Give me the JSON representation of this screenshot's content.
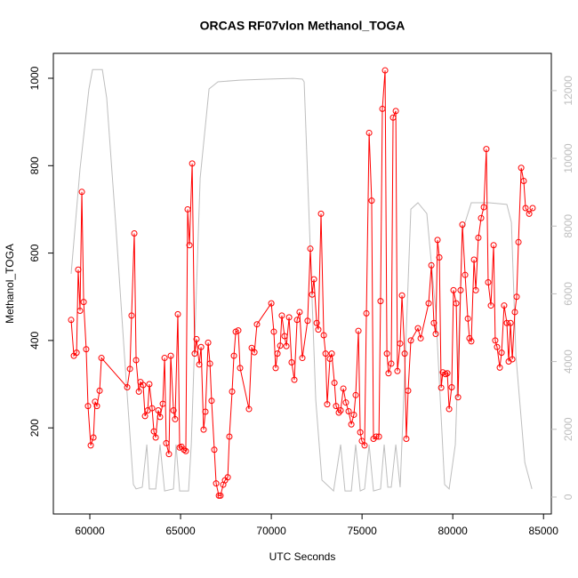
{
  "chart_data": {
    "type": "line",
    "title": "ORCAS RF07vlon Methanol_TOGA",
    "xlabel": "UTC Seconds",
    "ylabel": "Methanol_TOGA",
    "xlim": [
      57990,
      85430
    ],
    "xticks": [
      60000,
      65000,
      70000,
      75000,
      80000,
      85000
    ],
    "ylim": [
      3,
      1057
    ],
    "yticks": [
      200,
      400,
      600,
      800,
      1000
    ],
    "y2lim": [
      -500,
      13100
    ],
    "y2ticks": [
      0,
      2000,
      4000,
      6000,
      8000,
      10000,
      12000
    ],
    "series": [
      {
        "color": "#bebebe",
        "axis": "y2",
        "x": [
          58970,
          59460,
          59950,
          60150,
          60690,
          60930,
          61420,
          61910,
          62400,
          62550,
          62890,
          63140,
          63280,
          63630,
          63870,
          64120,
          64610,
          64750,
          64950,
          65440,
          65590,
          66080,
          66570,
          67060,
          68280,
          69750,
          71220,
          71710,
          71810,
          72450,
          72790,
          73430,
          73820,
          74060,
          74410,
          74650,
          74900,
          75140,
          75390,
          75630,
          76020,
          76220,
          76420,
          76610,
          76860,
          77100,
          77350,
          77690,
          78080,
          78570,
          79060,
          79550,
          79800,
          80140,
          80530,
          81020,
          82000,
          82980,
          83230,
          83480,
          83970,
          84360
        ],
        "values": [
          6590,
          9690,
          12050,
          12620,
          12620,
          11780,
          8110,
          4170,
          370,
          240,
          290,
          1550,
          240,
          240,
          1550,
          180,
          240,
          1550,
          180,
          180,
          1550,
          9420,
          12050,
          12260,
          12310,
          12340,
          12360,
          12340,
          12260,
          2860,
          500,
          180,
          1550,
          180,
          180,
          1550,
          180,
          240,
          1550,
          180,
          240,
          1550,
          290,
          290,
          1550,
          290,
          3650,
          8500,
          8690,
          8370,
          5490,
          370,
          240,
          1550,
          7850,
          8690,
          8690,
          8640,
          8110,
          4170,
          1020,
          240
        ]
      },
      {
        "color": "#ff0000",
        "marker": "circle",
        "x": [
          58970,
          59120,
          59270,
          59360,
          59460,
          59560,
          59660,
          59800,
          59900,
          60050,
          60200,
          60290,
          60390,
          60540,
          60640,
          62060,
          62210,
          62300,
          62450,
          62550,
          62700,
          62790,
          62940,
          63040,
          63190,
          63280,
          63430,
          63530,
          63630,
          63770,
          63870,
          64020,
          64120,
          64210,
          64360,
          64460,
          64610,
          64700,
          64850,
          64950,
          65050,
          65190,
          65290,
          65390,
          65490,
          65640,
          65780,
          65880,
          66030,
          66130,
          66270,
          66370,
          66520,
          66620,
          66710,
          66860,
          66960,
          67110,
          67200,
          67350,
          67450,
          67600,
          67690,
          67840,
          67940,
          68040,
          68180,
          68280,
          68770,
          68920,
          69070,
          69210,
          70000,
          70140,
          70240,
          70340,
          70490,
          70580,
          70730,
          70830,
          70980,
          71120,
          71270,
          71420,
          71560,
          71710,
          72000,
          72150,
          72250,
          72350,
          72500,
          72590,
          72740,
          72890,
          72990,
          73080,
          73230,
          73330,
          73480,
          73570,
          73720,
          73820,
          73970,
          74110,
          74260,
          74410,
          74550,
          74650,
          74800,
          74900,
          74990,
          75140,
          75240,
          75390,
          75530,
          75630,
          75780,
          75930,
          76020,
          76120,
          76270,
          76370,
          76460,
          76610,
          76710,
          76860,
          76950,
          77100,
          77200,
          77350,
          77440,
          77540,
          77690,
          78080,
          78230,
          78670,
          78820,
          78960,
          79060,
          79160,
          79260,
          79360,
          79450,
          79600,
          79700,
          79800,
          79940,
          80040,
          80190,
          80290,
          80430,
          80530,
          80680,
          80830,
          80920,
          81020,
          81170,
          81270,
          81410,
          81560,
          81710,
          81850,
          81950,
          82100,
          82250,
          82340,
          82440,
          82590,
          82690,
          82830,
          82980,
          83080,
          83180,
          83280,
          83420,
          83520,
          83620,
          83770,
          83910,
          84010,
          84210,
          84400
        ],
        "values": [
          447,
          365,
          372,
          562,
          468,
          740,
          488,
          380,
          250,
          160,
          178,
          260,
          250,
          285,
          360,
          293,
          335,
          457,
          645,
          355,
          283,
          305,
          298,
          227,
          240,
          300,
          245,
          192,
          178,
          240,
          225,
          255,
          360,
          165,
          140,
          365,
          240,
          220,
          460,
          155,
          157,
          150,
          147,
          700,
          618,
          805,
          370,
          403,
          345,
          385,
          196,
          237,
          395,
          347,
          262,
          150,
          73,
          45,
          45,
          70,
          80,
          87,
          180,
          283,
          365,
          420,
          423,
          337,
          243,
          383,
          373,
          437,
          485,
          420,
          337,
          370,
          388,
          457,
          410,
          387,
          453,
          350,
          310,
          447,
          465,
          360,
          445,
          610,
          505,
          540,
          440,
          425,
          690,
          412,
          370,
          254,
          358,
          370,
          303,
          250,
          235,
          240,
          290,
          258,
          238,
          208,
          230,
          275,
          422,
          190,
          170,
          160,
          462,
          875,
          720,
          175,
          180,
          180,
          490,
          930,
          1018,
          370,
          325,
          347,
          910,
          925,
          330,
          393,
          503,
          370,
          175,
          285,
          400,
          428,
          405,
          485,
          572,
          440,
          415,
          630,
          590,
          292,
          327,
          323,
          325,
          243,
          293,
          515,
          485,
          270,
          515,
          665,
          550,
          450,
          405,
          398,
          585,
          515,
          635,
          680,
          705,
          838,
          533,
          480,
          618,
          400,
          385,
          338,
          372,
          480,
          440,
          352,
          440,
          357,
          465,
          500,
          625,
          795,
          765,
          703,
          690,
          703
        ]
      }
    ]
  }
}
